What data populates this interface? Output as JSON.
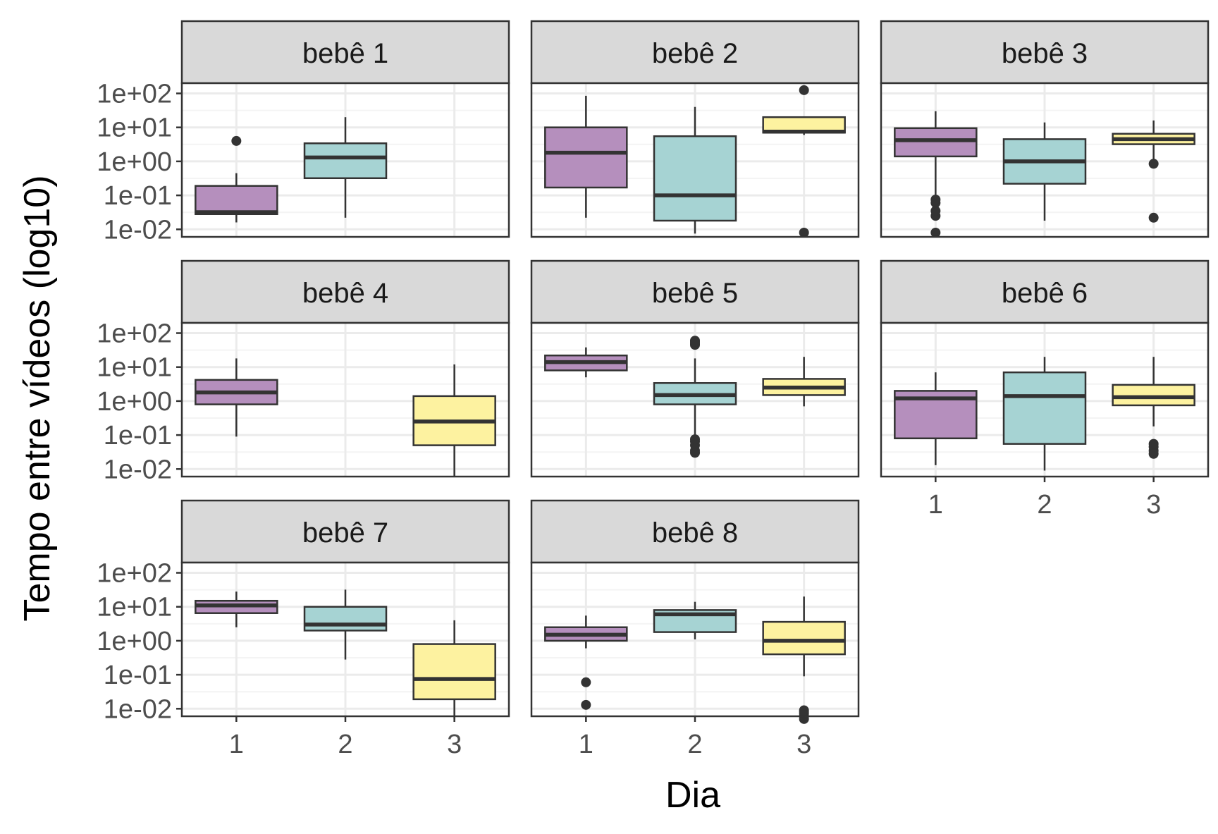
{
  "chart_data": {
    "type": "boxplot",
    "layout": "facet-wrap 3 columns",
    "xlabel": "Dia",
    "ylabel": "Tempo entre vídeos (log10)",
    "y_scale": "log10",
    "ylim": [
      0.006,
      200
    ],
    "y_ticks": [
      {
        "value": 100,
        "label": "1e+02"
      },
      {
        "value": 10,
        "label": "1e+01"
      },
      {
        "value": 1,
        "label": "1e+00"
      },
      {
        "value": 0.1,
        "label": "1e-01"
      },
      {
        "value": 0.01,
        "label": "1e-02"
      }
    ],
    "x_categories": [
      "1",
      "2",
      "3"
    ],
    "grid": true,
    "legend": "none",
    "fill_colors": {
      "1": "#b58fbd",
      "2": "#a6d3d3",
      "3": "#fdf2a0"
    },
    "facets": [
      {
        "label": "bebê 1",
        "boxes": [
          {
            "x": "1",
            "min": 0.016,
            "q1": 0.028,
            "median": 0.032,
            "q3": 0.19,
            "max": 0.45,
            "outliers": [
              4
            ]
          },
          {
            "x": "2",
            "min": 0.022,
            "q1": 0.32,
            "median": 1.3,
            "q3": 3.4,
            "max": 20,
            "outliers": []
          }
        ]
      },
      {
        "label": "bebê 2",
        "boxes": [
          {
            "x": "1",
            "min": 0.022,
            "q1": 0.17,
            "median": 1.8,
            "q3": 10,
            "max": 85,
            "outliers": []
          },
          {
            "x": "2",
            "min": 0.0075,
            "q1": 0.018,
            "median": 0.1,
            "q3": 5.5,
            "max": 40,
            "outliers": []
          },
          {
            "x": "3",
            "min": 6,
            "q1": 7,
            "median": 7.5,
            "q3": 20,
            "max": 20,
            "outliers": [
              0.008,
              125
            ]
          }
        ]
      },
      {
        "label": "bebê 3",
        "boxes": [
          {
            "x": "1",
            "min": 0.09,
            "q1": 1.4,
            "median": 4.2,
            "q3": 9.5,
            "max": 30,
            "outliers": [
              0.008,
              0.025,
              0.035,
              0.06,
              0.075
            ]
          },
          {
            "x": "2",
            "min": 0.018,
            "q1": 0.22,
            "median": 1,
            "q3": 4.5,
            "max": 14,
            "outliers": []
          },
          {
            "x": "3",
            "min": 0.8,
            "q1": 3.2,
            "median": 4.5,
            "q3": 6.5,
            "max": 16,
            "outliers": [
              0.022,
              0.85
            ]
          }
        ]
      },
      {
        "label": "bebê 4",
        "boxes": [
          {
            "x": "1",
            "min": 0.09,
            "q1": 0.8,
            "median": 1.8,
            "q3": 4.2,
            "max": 18,
            "outliers": []
          },
          {
            "x": "3",
            "min": 0.006,
            "q1": 0.05,
            "median": 0.25,
            "q3": 1.4,
            "max": 12,
            "outliers": []
          }
        ]
      },
      {
        "label": "bebê 5",
        "boxes": [
          {
            "x": "1",
            "min": 5,
            "q1": 8,
            "median": 14,
            "q3": 22,
            "max": 38,
            "outliers": []
          },
          {
            "x": "2",
            "min": 0.1,
            "q1": 0.8,
            "median": 1.5,
            "q3": 3.4,
            "max": 18,
            "outliers": [
              0.03,
              0.035,
              0.05,
              0.065,
              0.075,
              45,
              50,
              55,
              60
            ]
          },
          {
            "x": "3",
            "min": 0.7,
            "q1": 1.5,
            "median": 2.5,
            "q3": 4.5,
            "max": 20,
            "outliers": []
          }
        ]
      },
      {
        "label": "bebê 6",
        "boxes": [
          {
            "x": "1",
            "min": 0.013,
            "q1": 0.08,
            "median": 1.2,
            "q3": 2,
            "max": 7,
            "outliers": []
          },
          {
            "x": "2",
            "min": 0.009,
            "q1": 0.055,
            "median": 1.4,
            "q3": 7,
            "max": 20,
            "outliers": []
          },
          {
            "x": "3",
            "min": 0.18,
            "q1": 0.75,
            "median": 1.3,
            "q3": 3,
            "max": 20,
            "outliers": [
              0.028,
              0.035,
              0.045,
              0.055
            ]
          }
        ]
      },
      {
        "label": "bebê 7",
        "boxes": [
          {
            "x": "1",
            "min": 2.5,
            "q1": 6.5,
            "median": 11,
            "q3": 15,
            "max": 28,
            "outliers": []
          },
          {
            "x": "2",
            "min": 0.28,
            "q1": 2,
            "median": 3,
            "q3": 10,
            "max": 32,
            "outliers": []
          },
          {
            "x": "3",
            "min": 0.005,
            "q1": 0.019,
            "median": 0.075,
            "q3": 0.8,
            "max": 4,
            "outliers": []
          }
        ]
      },
      {
        "label": "bebê 8",
        "boxes": [
          {
            "x": "1",
            "min": 0.6,
            "q1": 1,
            "median": 1.5,
            "q3": 2.5,
            "max": 5.5,
            "outliers": [
              0.013,
              0.06
            ]
          },
          {
            "x": "2",
            "min": 1.1,
            "q1": 1.8,
            "median": 6,
            "q3": 8,
            "max": 14,
            "outliers": []
          },
          {
            "x": "3",
            "min": 0.09,
            "q1": 0.4,
            "median": 1,
            "q3": 3.6,
            "max": 20,
            "outliers": [
              0.005,
              0.006,
              0.007,
              0.008,
              0.009
            ]
          }
        ]
      }
    ]
  }
}
